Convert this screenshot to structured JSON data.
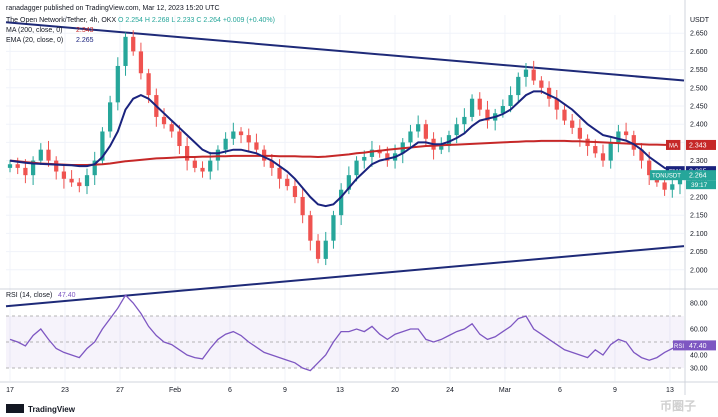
{
  "header": {
    "author": "ranadagger published on TradingView.com, Mar 12, 2023 15:20 UTC",
    "instrument": "The Open Network/Tether, 4h, OKX",
    "ohlc": "O 2.254  H 2.268  L 2.233  C 2.264  +0.009 (+0.40%)",
    "ma_label": "MA (200, close, 0)",
    "ma_value": "2.343",
    "ema_label": "EMA (20, close, 0)",
    "ema_value": "2.265",
    "rsi_label": "RSI (14, close)",
    "rsi_value": "47.40"
  },
  "footer": {
    "brand": "TradingView",
    "watermark": "币圈子"
  },
  "colors": {
    "up": "#26a69a",
    "down": "#ef5350",
    "ema": "#1a237e",
    "ma": "#c62828",
    "trendline": "#1e2a78",
    "rsi": "#7e57c2",
    "label_blue": "#2962ff"
  },
  "chart_data": [
    {
      "type": "candlestick",
      "title": "The Open Network/Tether, 4h, OKX",
      "currency": "USDT",
      "ylim": [
        1.95,
        2.7
      ],
      "y_ticks": [
        "2.000",
        "2.050",
        "2.100",
        "2.150",
        "2.200",
        "2.250",
        "2.300",
        "2.350",
        "2.400",
        "2.450",
        "2.500",
        "2.550",
        "2.600",
        "2.650"
      ],
      "x_ticks": [
        "17",
        "23",
        "27",
        "Feb",
        "6",
        "9",
        "13",
        "20",
        "24",
        "Mar",
        "6",
        "9",
        "13"
      ],
      "price_labels": [
        {
          "tag": "MA",
          "value": "2.343"
        },
        {
          "tag": "EMA",
          "value": "2.265"
        },
        {
          "tag": "TONUSDT",
          "value": "2.264"
        },
        {
          "tag": "",
          "value": "39:17"
        }
      ],
      "trendlines": [
        {
          "name": "upper resistance",
          "from": 2.68,
          "to": 2.52
        },
        {
          "name": "lower support",
          "from": 1.9,
          "to": 2.065
        }
      ],
      "close": [
        2.29,
        2.28,
        2.26,
        2.3,
        2.33,
        2.3,
        2.27,
        2.25,
        2.24,
        2.23,
        2.26,
        2.3,
        2.38,
        2.46,
        2.56,
        2.64,
        2.6,
        2.54,
        2.48,
        2.42,
        2.4,
        2.38,
        2.34,
        2.3,
        2.28,
        2.27,
        2.3,
        2.33,
        2.36,
        2.38,
        2.37,
        2.35,
        2.33,
        2.3,
        2.28,
        2.25,
        2.23,
        2.2,
        2.15,
        2.08,
        2.03,
        2.08,
        2.15,
        2.22,
        2.26,
        2.3,
        2.31,
        2.33,
        2.32,
        2.3,
        2.32,
        2.35,
        2.38,
        2.4,
        2.36,
        2.33,
        2.34,
        2.37,
        2.4,
        2.42,
        2.47,
        2.44,
        2.41,
        2.43,
        2.45,
        2.48,
        2.53,
        2.55,
        2.52,
        2.5,
        2.47,
        2.44,
        2.41,
        2.39,
        2.36,
        2.34,
        2.32,
        2.3,
        2.35,
        2.38,
        2.37,
        2.33,
        2.3,
        2.26,
        2.24,
        2.22,
        2.235,
        2.264
      ],
      "ma200": [
        2.3,
        2.298,
        2.296,
        2.294,
        2.292,
        2.291,
        2.29,
        2.289,
        2.288,
        2.288,
        2.288,
        2.289,
        2.29,
        2.292,
        2.295,
        2.298,
        2.3,
        2.302,
        2.304,
        2.306,
        2.307,
        2.308,
        2.309,
        2.31,
        2.31,
        2.311,
        2.311,
        2.312,
        2.312,
        2.313,
        2.313,
        2.313,
        2.313,
        2.313,
        2.313,
        2.312,
        2.312,
        2.312,
        2.311,
        2.311,
        2.31,
        2.311,
        2.313,
        2.315,
        2.317,
        2.32,
        2.322,
        2.325,
        2.327,
        2.33,
        2.332,
        2.334,
        2.336,
        2.338,
        2.34,
        2.341,
        2.342,
        2.343,
        2.344,
        2.345,
        2.346,
        2.347,
        2.348,
        2.349,
        2.35,
        2.351,
        2.352,
        2.353,
        2.353,
        2.354,
        2.354,
        2.354,
        2.354,
        2.353,
        2.353,
        2.352,
        2.351,
        2.35,
        2.349,
        2.348,
        2.347,
        2.346,
        2.345,
        2.344,
        2.344,
        2.343,
        2.343,
        2.343
      ],
      "ema20": [
        2.3,
        2.297,
        2.294,
        2.292,
        2.291,
        2.29,
        2.289,
        2.288,
        2.287,
        2.285,
        2.285,
        2.29,
        2.31,
        2.34,
        2.38,
        2.44,
        2.47,
        2.48,
        2.47,
        2.45,
        2.43,
        2.41,
        2.39,
        2.37,
        2.35,
        2.33,
        2.32,
        2.32,
        2.325,
        2.33,
        2.33,
        2.325,
        2.32,
        2.31,
        2.3,
        2.285,
        2.27,
        2.25,
        2.225,
        2.2,
        2.18,
        2.175,
        2.18,
        2.2,
        2.225,
        2.25,
        2.27,
        2.29,
        2.3,
        2.305,
        2.31,
        2.32,
        2.335,
        2.35,
        2.35,
        2.345,
        2.345,
        2.352,
        2.362,
        2.375,
        2.395,
        2.41,
        2.415,
        2.42,
        2.428,
        2.44,
        2.46,
        2.48,
        2.49,
        2.49,
        2.48,
        2.47,
        2.455,
        2.44,
        2.42,
        2.4,
        2.385,
        2.37,
        2.365,
        2.36,
        2.355,
        2.345,
        2.33,
        2.31,
        2.295,
        2.28,
        2.27,
        2.265
      ]
    },
    {
      "type": "line",
      "title": "RSI (14, close)",
      "ylim": [
        20,
        90
      ],
      "y_ticks": [
        "30.00",
        "40.00",
        "60.00",
        "80.00"
      ],
      "bands": [
        30,
        70
      ],
      "values": [
        52,
        50,
        47,
        55,
        60,
        52,
        45,
        42,
        40,
        38,
        45,
        50,
        60,
        68,
        76,
        86,
        80,
        72,
        62,
        55,
        50,
        48,
        44,
        40,
        38,
        37,
        45,
        52,
        56,
        58,
        55,
        50,
        46,
        42,
        40,
        38,
        36,
        34,
        30,
        28,
        34,
        40,
        50,
        58,
        58,
        60,
        58,
        62,
        56,
        52,
        56,
        58,
        60,
        60,
        52,
        50,
        52,
        55,
        58,
        60,
        64,
        56,
        52,
        54,
        58,
        62,
        68,
        70,
        60,
        56,
        52,
        48,
        44,
        42,
        40,
        38,
        44,
        40,
        48,
        52,
        50,
        42,
        38,
        36,
        38,
        42,
        45,
        47.4
      ]
    }
  ]
}
